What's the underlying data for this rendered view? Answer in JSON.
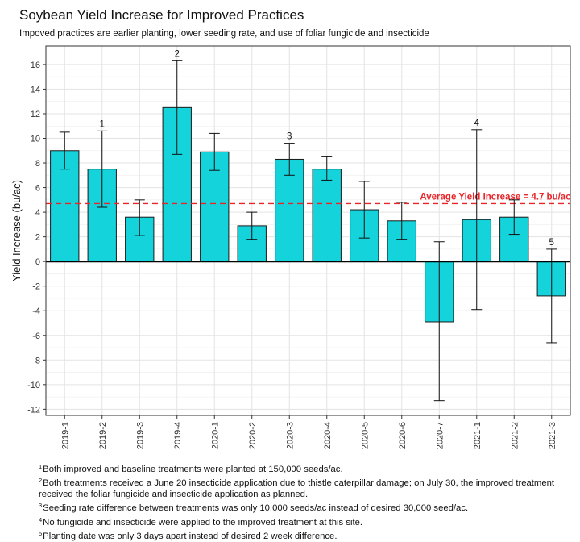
{
  "chart_data": {
    "type": "bar",
    "title": "Soybean Yield Increase for Improved Practices",
    "subtitle": "Impoved practices are earlier planting, lower seeding rate, and use of foliar fungicide and insecticide",
    "xlabel": "",
    "ylabel": "Yield Increase (bu/ac)",
    "ylim": [
      -12.5,
      17.5
    ],
    "yticks": [
      -12,
      -10,
      -8,
      -6,
      -4,
      -2,
      0,
      2,
      4,
      6,
      8,
      10,
      12,
      14,
      16
    ],
    "grid": true,
    "categories": [
      "2019-1",
      "2019-2",
      "2019-3",
      "2019-4",
      "2020-1",
      "2020-2",
      "2020-3",
      "2020-4",
      "2020-5",
      "2020-6",
      "2020-7",
      "2021-1",
      "2021-2",
      "2021-3"
    ],
    "values": [
      9.0,
      7.5,
      3.6,
      12.5,
      8.9,
      2.9,
      8.3,
      7.5,
      4.2,
      3.3,
      -4.9,
      3.4,
      3.6,
      -2.8
    ],
    "error_low": [
      7.5,
      4.4,
      2.1,
      8.7,
      7.4,
      1.8,
      7.0,
      6.6,
      1.9,
      1.8,
      -11.3,
      -3.9,
      2.2,
      -6.6
    ],
    "error_high": [
      10.5,
      10.6,
      5.0,
      16.3,
      10.4,
      4.0,
      9.6,
      8.5,
      6.5,
      4.8,
      1.6,
      10.7,
      5.0,
      1.0
    ],
    "bar_annotations": [
      {
        "category": "2019-2",
        "label": "1"
      },
      {
        "category": "2019-4",
        "label": "2"
      },
      {
        "category": "2020-3",
        "label": "3"
      },
      {
        "category": "2021-1",
        "label": "4"
      },
      {
        "category": "2021-3",
        "label": "5"
      }
    ],
    "reference_line": {
      "value": 4.7,
      "label": "Average Yield Increase = 4.7 bu/ac",
      "color": "#e8262a"
    },
    "bar_color": "#14d3db",
    "zero_line": true
  },
  "footnotes": [
    {
      "mark": "1",
      "text": "Both improved and baseline treatments were planted at 150,000 seeds/ac."
    },
    {
      "mark": "2",
      "text": "Both treatments received a June 20 insecticide application due to thistle caterpillar damage; on July 30, the improved treatment received the foliar fungicide and insecticide application as planned."
    },
    {
      "mark": "3",
      "text": "Seeding rate difference between treatments was only 10,000 seeds/ac instead of desired 30,000 seed/ac."
    },
    {
      "mark": "4",
      "text": "No fungicide and insecticide were applied to the improved treatment at this site."
    },
    {
      "mark": "5",
      "text": "Planting date was only 3 days apart instead of desired 2 week difference."
    }
  ]
}
